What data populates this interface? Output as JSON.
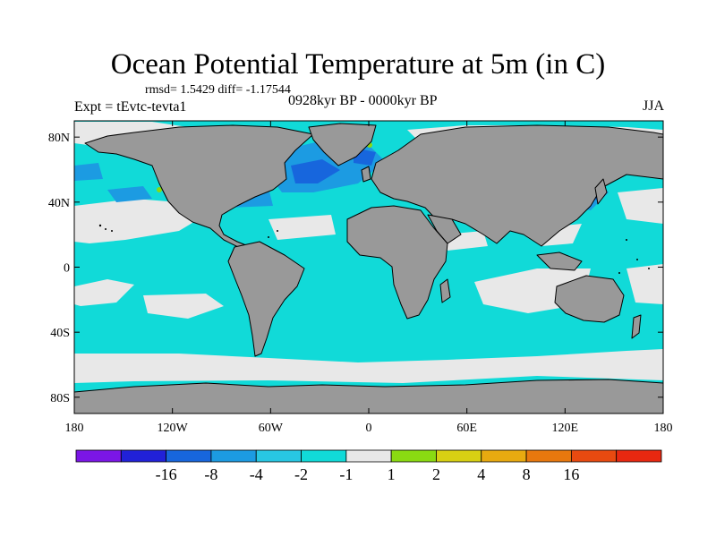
{
  "header": {
    "title": "Ocean Potential Temperature at 5m (in C)",
    "stats": "rmsd= 1.5429 diff= -1.17544",
    "experiment": "Expt = tEvtc-tevta1",
    "period": "0928kyr BP - 0000kyr BP",
    "season": "JJA"
  },
  "map": {
    "projection": "cylindrical-equidistant",
    "lon_range": [
      -180,
      180
    ],
    "lat_range": [
      -90,
      90
    ],
    "land_color": "#999999",
    "coastline_color": "#000000",
    "lon_ticks": [
      {
        "value": -180,
        "label": "180"
      },
      {
        "value": -120,
        "label": "120W"
      },
      {
        "value": -60,
        "label": "60W"
      },
      {
        "value": 0,
        "label": "0"
      },
      {
        "value": 60,
        "label": "60E"
      },
      {
        "value": 120,
        "label": "120E"
      },
      {
        "value": 180,
        "label": "180"
      }
    ],
    "lat_ticks": [
      {
        "value": 80,
        "label": "80N"
      },
      {
        "value": 40,
        "label": "40N"
      },
      {
        "value": 0,
        "label": "0"
      },
      {
        "value": -40,
        "label": "40S"
      },
      {
        "value": -80,
        "label": "80S"
      }
    ]
  },
  "colorbar": {
    "colors": [
      "#7b16e6",
      "#2121d8",
      "#1766dd",
      "#1c9be2",
      "#28c7e3",
      "#11dad8",
      "#e8e8e8",
      "#8ada12",
      "#d8d013",
      "#e8aa10",
      "#e8780e",
      "#e84a10",
      "#e82810"
    ],
    "labels": [
      "-16",
      "-8",
      "-4",
      "-2",
      "-1",
      "1",
      "2",
      "4",
      "8",
      "16"
    ]
  }
}
